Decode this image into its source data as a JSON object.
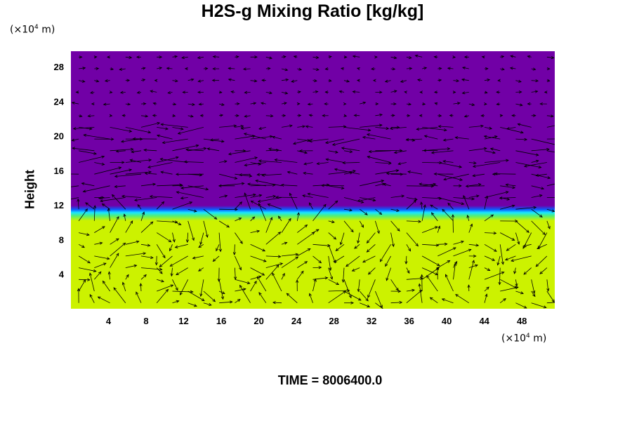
{
  "chart_data": {
    "type": "heatmap",
    "title": "H2S-g Mixing Ratio [kg/kg]",
    "ylabel": "Height",
    "xlabel": "",
    "y_unit": {
      "prefix": "(×10",
      "exp": "4",
      "suffix": " m)"
    },
    "x_unit": {
      "prefix": "(×10",
      "exp": "4",
      "suffix": " m)"
    },
    "x_ticks": [
      "4",
      "8",
      "12",
      "16",
      "20",
      "24",
      "28",
      "32",
      "36",
      "40",
      "44",
      "48"
    ],
    "y_ticks": [
      "4",
      "8",
      "12",
      "16",
      "20",
      "24",
      "28"
    ],
    "xlim": [
      0,
      51.5
    ],
    "ylim": [
      0,
      29.8
    ],
    "colors": {
      "upper_layer": "#7100a6",
      "lower_layer": "#ccf200",
      "transition_blue": "#0a5cff",
      "transition_cyan": "#18e6ff",
      "transition_green": "#56ef70",
      "vectors": "#000000"
    },
    "interface_height_approx": 12.3,
    "overlay": "wind vectors",
    "time_label": "TIME = 8006400.0"
  }
}
